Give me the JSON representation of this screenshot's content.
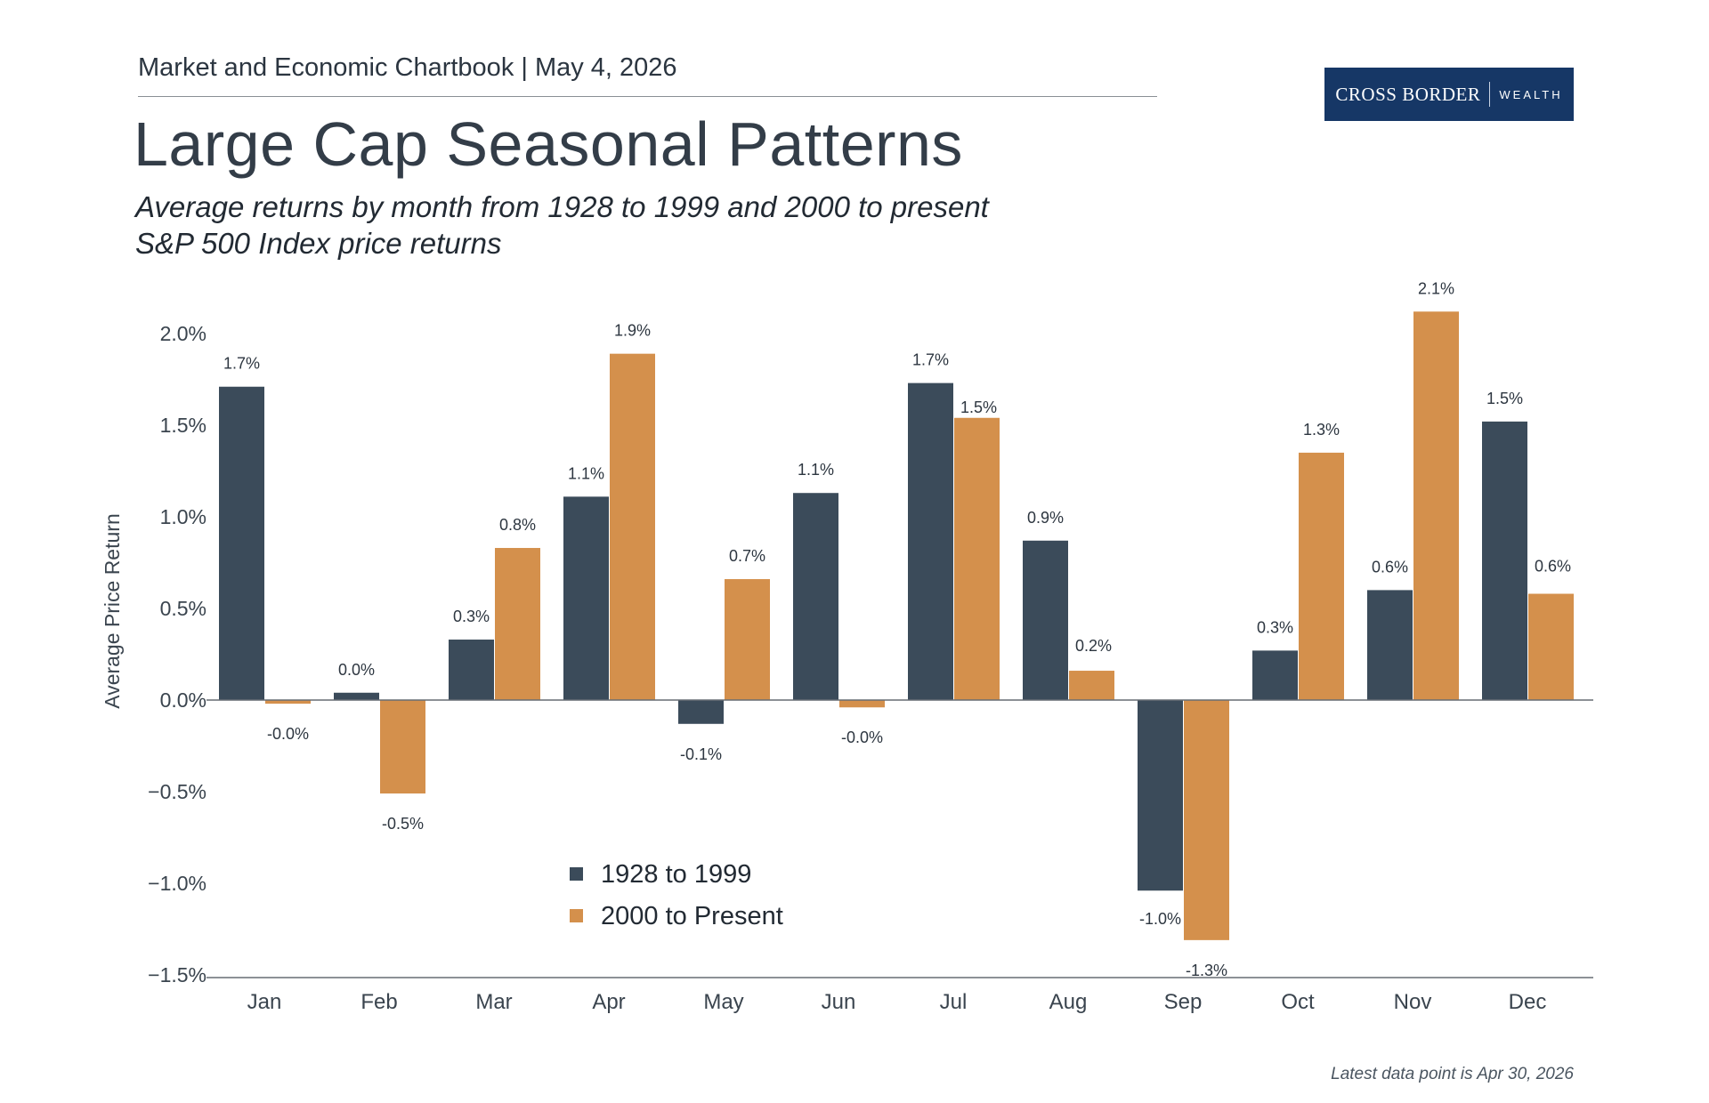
{
  "header": {
    "chartbook": "Market and Economic Chartbook | May 4, 2026",
    "logo_brand": "CROSS BORDER",
    "logo_sub": "WEALTH"
  },
  "title": "Large Cap Seasonal Patterns",
  "subtitle_1": "Average returns by month from 1928 to 1999 and 2000 to present",
  "subtitle_2": "S&P 500 Index price returns",
  "footnote": "Latest data point is Apr 30, 2026",
  "colors": {
    "series_1": "#3b4b5a",
    "series_2": "#d4904c",
    "axis": "#666d74",
    "logo_bg": "#163766"
  },
  "chart_data": {
    "type": "bar",
    "ylabel": "Average Price Return",
    "xlabel": "",
    "ylim": [
      -1.5,
      2.2
    ],
    "yticks": [
      2.0,
      1.5,
      1.0,
      0.5,
      0.0,
      -0.5,
      -1.0,
      -1.5
    ],
    "ytick_labels": [
      "2.0%",
      "1.5%",
      "1.0%",
      "0.5%",
      "0.0%",
      "−0.5%",
      "−1.0%",
      "−1.5%"
    ],
    "grid": false,
    "legend_position": "lower-center",
    "categories": [
      "Jan",
      "Feb",
      "Mar",
      "Apr",
      "May",
      "Jun",
      "Jul",
      "Aug",
      "Sep",
      "Oct",
      "Nov",
      "Dec"
    ],
    "series": [
      {
        "name": "1928 to 1999",
        "values": [
          1.71,
          0.04,
          0.33,
          1.11,
          -0.13,
          1.13,
          1.73,
          0.87,
          -1.04,
          0.27,
          0.6,
          1.52
        ],
        "labels": [
          "1.7%",
          "0.0%",
          "0.3%",
          "1.1%",
          "-0.1%",
          "1.1%",
          "1.7%",
          "0.9%",
          "-1.0%",
          "0.3%",
          "0.6%",
          "1.5%"
        ]
      },
      {
        "name": "2000 to Present",
        "values": [
          -0.02,
          -0.51,
          0.83,
          1.89,
          0.66,
          -0.04,
          1.54,
          0.16,
          -1.31,
          1.35,
          2.12,
          0.58
        ],
        "labels": [
          "-0.0%",
          "-0.5%",
          "0.8%",
          "1.9%",
          "0.7%",
          "-0.0%",
          "1.5%",
          "0.2%",
          "-1.3%",
          "1.3%",
          "2.1%",
          "0.6%"
        ]
      }
    ]
  }
}
